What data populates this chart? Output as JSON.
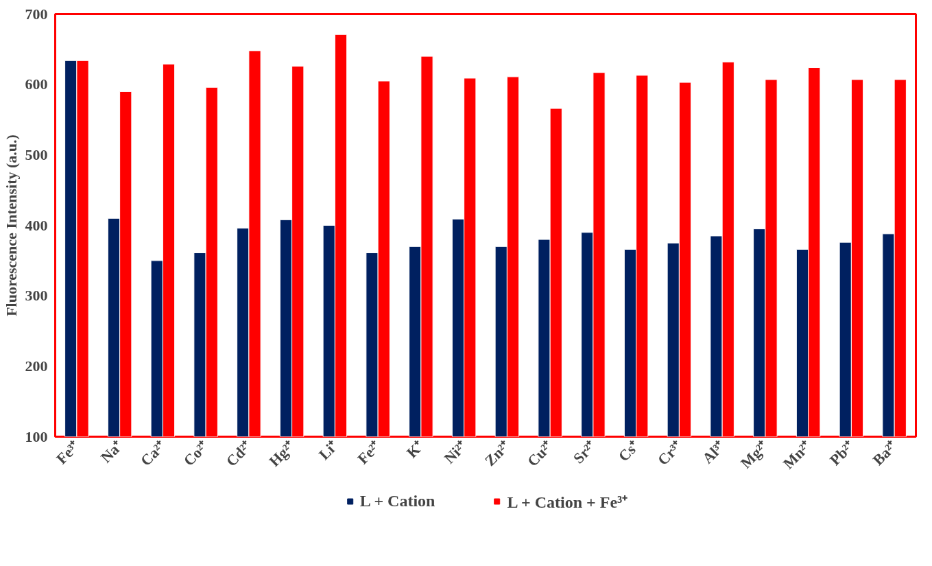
{
  "chart_data": {
    "type": "bar",
    "ylabel": "Fluorescence Intensity (a.u.)",
    "categories": [
      "Fe³⁺",
      "Na⁺",
      "Ca²⁺",
      "Co²⁺",
      "Cd²⁺",
      "Hg²⁺",
      "Li⁺",
      "Fe²⁺",
      "K⁺",
      "Ni²⁺",
      "Zn²⁺",
      "Cu²⁺",
      "Sr²⁺",
      "Cs⁺",
      "Cr³⁺",
      "Al³⁺",
      "Mg²⁺",
      "Mn²⁺",
      "Pb²⁺",
      "Ba²⁺"
    ],
    "series": [
      {
        "name": "L + Cation",
        "color": "#002060",
        "values": [
          634,
          410,
          350,
          361,
          396,
          408,
          400,
          361,
          370,
          409,
          370,
          380,
          390,
          366,
          375,
          385,
          395,
          366,
          376,
          388
        ]
      },
      {
        "name": "L + Cation + Fe³⁺",
        "color": "#ff0000",
        "values": [
          634,
          590,
          629,
          596,
          648,
          626,
          671,
          605,
          640,
          609,
          611,
          566,
          617,
          613,
          603,
          632,
          607,
          624,
          607,
          607
        ]
      }
    ],
    "ylim": [
      100,
      700
    ],
    "yticks": [
      100,
      200,
      300,
      400,
      500,
      600,
      700
    ],
    "grid": false,
    "legend": "bottom"
  }
}
